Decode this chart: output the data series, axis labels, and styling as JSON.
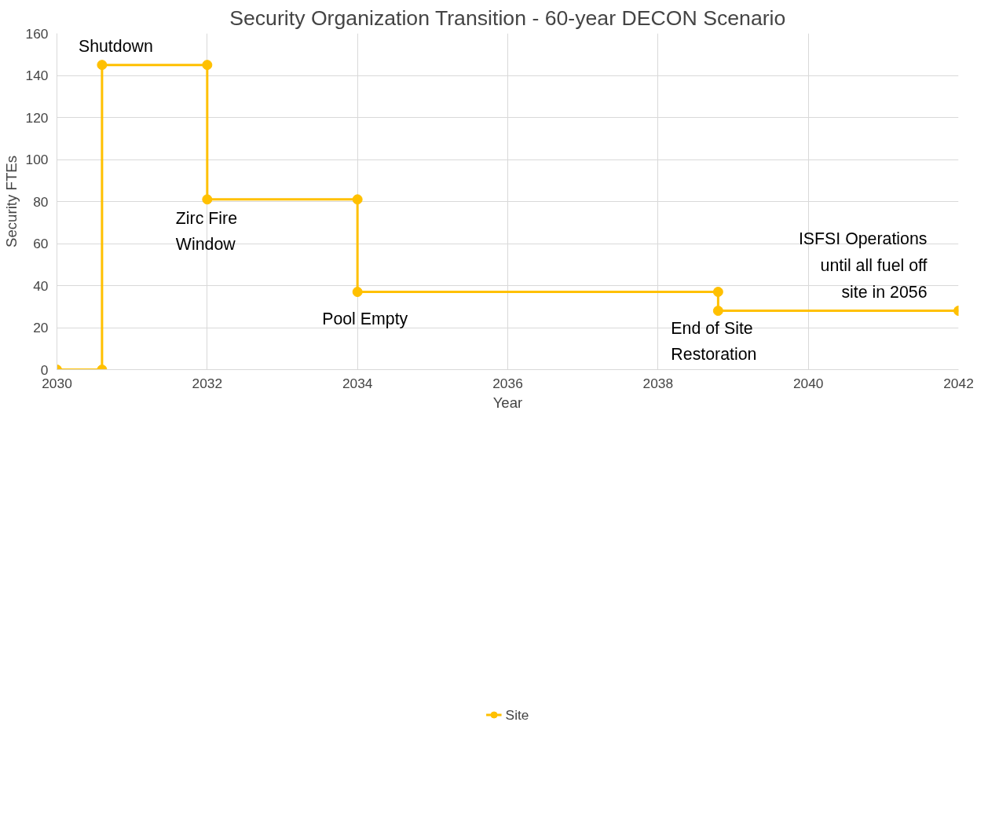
{
  "chart_data": {
    "type": "line",
    "title": "Security Organization Transition - 60-year DECON Scenario",
    "xlabel": "Year",
    "ylabel": "Security FTEs",
    "x": [
      2030,
      2030.6,
      2030.6,
      2032,
      2032,
      2034,
      2034,
      2038.8,
      2038.8,
      2042
    ],
    "series": [
      {
        "name": "Site",
        "color": "#ffc000",
        "values": [
          0,
          0,
          145,
          145,
          81,
          81,
          37,
          37,
          28,
          28
        ]
      }
    ],
    "xlim": [
      2030,
      2042
    ],
    "xticks": [
      2030,
      2032,
      2034,
      2036,
      2038,
      2040,
      2042
    ],
    "ylim": [
      0,
      160
    ],
    "yticks": [
      0,
      20,
      40,
      60,
      80,
      100,
      120,
      140,
      160
    ],
    "grid": true,
    "legend": "bottom",
    "marker": "circle",
    "line_style": "solid",
    "annotations": [
      {
        "text": "Shutdown",
        "x": 2030.6,
        "y": 145
      },
      {
        "text": "Zirc Fire\nWindow",
        "x": 2032,
        "y": 81
      },
      {
        "text": "Pool Empty",
        "x": 2034,
        "y": 37
      },
      {
        "text": "End of Site\nRestoration",
        "x": 2038.8,
        "y": 28
      },
      {
        "text": "ISFSI Operations\nuntil all fuel off\nsite in 2056",
        "x": 2042,
        "y": 28
      }
    ]
  }
}
